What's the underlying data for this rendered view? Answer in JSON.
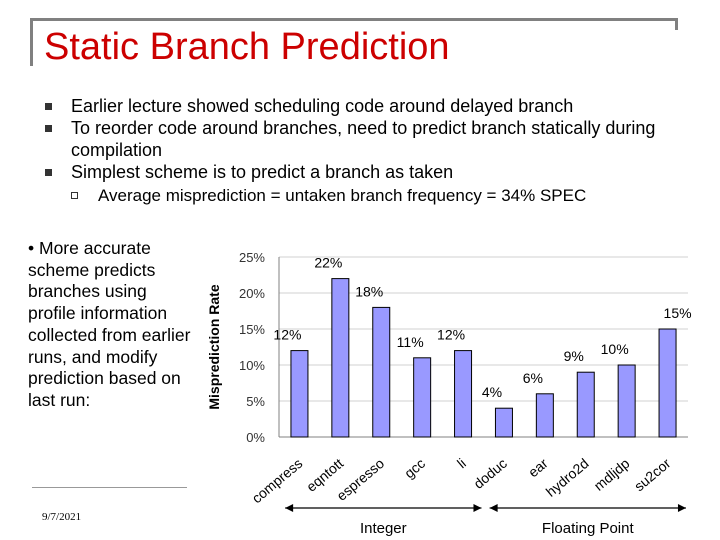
{
  "slide": {
    "title": "Static Branch Prediction",
    "bullets": [
      "Earlier lecture showed scheduling code around delayed branch",
      "To reorder code around branches, need to predict branch statically during compilation",
      "Simplest scheme is to predict a branch as taken"
    ],
    "sub_bullet": "Average misprediction = untaken branch frequency = 34% SPEC",
    "side_note": "• More accurate scheme predicts branches using profile information collected from earlier runs, and modify prediction based on last run:",
    "date": "9/7/2021"
  },
  "colors": {
    "title": "#cc0000",
    "bar_fill": "#9999ff",
    "bar_stroke": "#000000"
  },
  "chart_data": {
    "type": "bar",
    "categories": [
      "compress",
      "eqntott",
      "espresso",
      "gcc",
      "li",
      "doduc",
      "ear",
      "hydro2d",
      "mdljdp",
      "su2cor"
    ],
    "values": [
      12,
      22,
      18,
      11,
      12,
      4,
      6,
      9,
      10,
      15
    ],
    "data_labels": [
      "12%",
      "22%",
      "18%",
      "11%",
      "12%",
      "4%",
      "6%",
      "9%",
      "10%",
      "15%"
    ],
    "ylabel": "Misprediction Rate",
    "ylim": [
      0,
      25
    ],
    "yticks": [
      0,
      5,
      10,
      15,
      20,
      25
    ],
    "ytick_labels": [
      "0%",
      "5%",
      "10%",
      "15%",
      "20%",
      "25%"
    ],
    "grid": true,
    "groups": [
      {
        "label": "Integer",
        "range": [
          0,
          4
        ]
      },
      {
        "label": "Floating Point",
        "range": [
          5,
          9
        ]
      }
    ]
  }
}
